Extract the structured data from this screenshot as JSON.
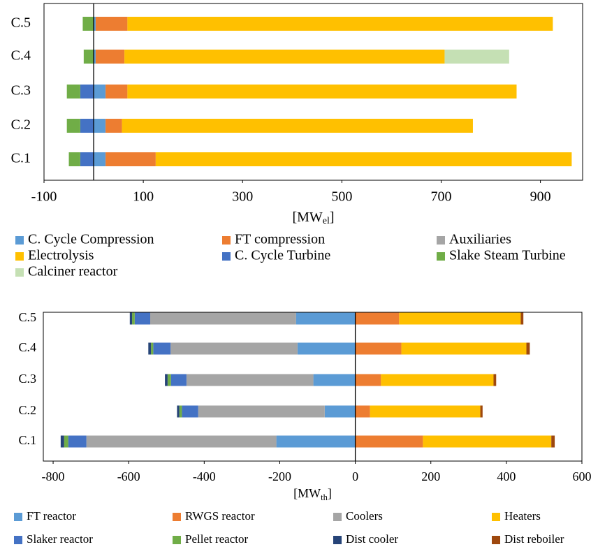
{
  "chart_data": [
    {
      "type": "bar",
      "orientation": "horizontal",
      "stacked": true,
      "categories": [
        "C.1",
        "C.2",
        "C.3",
        "C.4",
        "C.5"
      ],
      "x_label": {
        "text": "[MW",
        "subscript": "el",
        "suffix": "]"
      },
      "xlim": [
        -100,
        985
      ],
      "xticks": [
        -100,
        100,
        300,
        500,
        700,
        900
      ],
      "series": [
        {
          "name": "C. Cycle Compression",
          "color": "#5b9bd5",
          "values": [
            24,
            24,
            24,
            4,
            4
          ]
        },
        {
          "name": "FT compression",
          "color": "#ed7d31",
          "values": [
            101,
            33,
            44,
            58,
            64
          ]
        },
        {
          "name": "Auxiliaries",
          "color": "#a5a5a5",
          "values": [
            0,
            0,
            0,
            0,
            0
          ]
        },
        {
          "name": "Electrolysis",
          "color": "#ffc000",
          "values": [
            838,
            707,
            784,
            645,
            857
          ]
        },
        {
          "name": "C. Cycle Turbine",
          "color": "#4472c4",
          "values": [
            -27,
            -27,
            -27,
            0,
            0
          ]
        },
        {
          "name": "Slake Steam Turbine",
          "color": "#70ad47",
          "values": [
            -23,
            -27,
            -27,
            -20,
            -22
          ]
        },
        {
          "name": "Calciner reactor",
          "color": "#c5e0b4",
          "values": [
            0,
            0,
            0,
            130,
            0
          ]
        }
      ]
    },
    {
      "type": "bar",
      "orientation": "horizontal",
      "stacked": true,
      "categories": [
        "C.1",
        "C.2",
        "C.3",
        "C.4",
        "C.5"
      ],
      "x_label": {
        "text": "[MW",
        "subscript": "th",
        "suffix": "]"
      },
      "xlim": [
        -826,
        600
      ],
      "xticks": [
        -800,
        -600,
        -400,
        -200,
        0,
        200,
        400,
        600
      ],
      "series": [
        {
          "name": "FT reactor",
          "color": "#5b9bd5",
          "values": [
            -209,
            -81,
            -111,
            -153,
            -157
          ]
        },
        {
          "name": "RWGS reactor",
          "color": "#ed7d31",
          "values": [
            179,
            39,
            68,
            122,
            116
          ]
        },
        {
          "name": "Coolers",
          "color": "#a5a5a5",
          "values": [
            -503,
            -335,
            -336,
            -336,
            -386
          ]
        },
        {
          "name": "Heaters",
          "color": "#ffc000",
          "values": [
            340,
            292,
            298,
            331,
            322
          ]
        },
        {
          "name": "Slaker reactor",
          "color": "#4472c4",
          "values": [
            -48,
            -43,
            -41,
            -46,
            -41
          ]
        },
        {
          "name": "Pellet reactor",
          "color": "#70ad47",
          "values": [
            -11,
            -7,
            -9,
            -6,
            -7
          ]
        },
        {
          "name": "Dist cooler",
          "color": "#264478",
          "values": [
            -9,
            -6,
            -7,
            -7,
            -6
          ]
        },
        {
          "name": "Dist reboiler",
          "color": "#9e480e",
          "values": [
            9,
            6,
            7,
            9,
            7
          ]
        }
      ]
    }
  ]
}
